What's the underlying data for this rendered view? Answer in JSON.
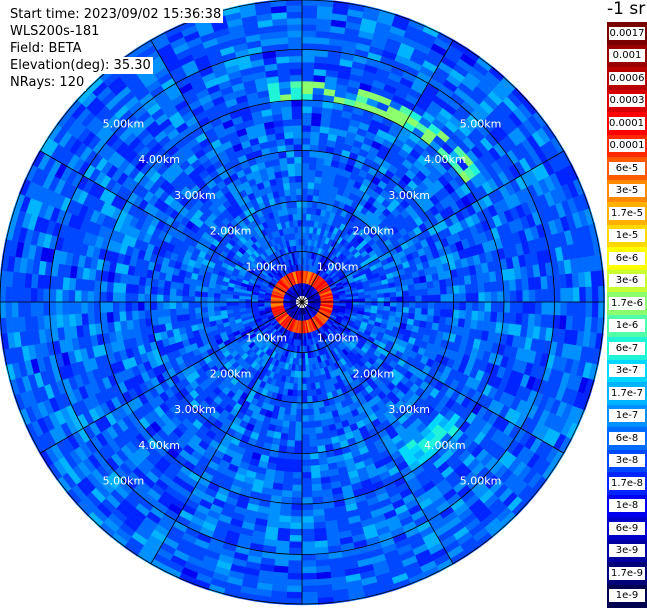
{
  "header": {
    "start_time": "Start time: 2023/09/02 15:36:38",
    "instrument": "WLS200s-181",
    "field": "Field: BETA",
    "elevation": "Elevation(deg): 35.30",
    "nrays": "NRays: 120"
  },
  "colorbar": {
    "unit_label": "-1 sr",
    "levels": [
      "0.0017",
      "0.001",
      "0.0006",
      "0.0003",
      "0.00017",
      "0.0001",
      "6e-5",
      "3e-5",
      "1.7e-5",
      "1e-5",
      "6e-6",
      "3e-6",
      "1.7e-6",
      "1e-6",
      "6e-7",
      "3e-7",
      "1.7e-7",
      "1e-7",
      "6e-8",
      "3e-8",
      "1.7e-8",
      "1e-8",
      "6e-9",
      "3e-9",
      "1.7e-9",
      "1e-9"
    ],
    "colors": [
      "#7a0000",
      "#990000",
      "#b80000",
      "#d80000",
      "#ff0000",
      "#ff2a00",
      "#ff5a00",
      "#ff8800",
      "#ffb000",
      "#ffd800",
      "#ffff00",
      "#c8ff30",
      "#8cff6c",
      "#50ffa8",
      "#20f4d8",
      "#00d8ff",
      "#00b4ff",
      "#0090ff",
      "#006cff",
      "#0048ff",
      "#0024ff",
      "#0000f0",
      "#0000c8",
      "#0000a0",
      "#000078",
      "#000050"
    ]
  },
  "chart_data": {
    "type": "polar PPI (plan position indicator) scan",
    "field": "BETA",
    "elevation_deg": 35.3,
    "n_rays": 120,
    "radial_axis": {
      "ring_labels": [
        "1.00km",
        "2.00km",
        "3.00km",
        "4.00km",
        "5.00km"
      ],
      "ring_values_km": [
        1,
        2,
        3,
        4,
        5
      ],
      "max_range_km": 6.0
    },
    "azimuth_spokes_deg": [
      0,
      30,
      60,
      90,
      120,
      150,
      180,
      210,
      240,
      270,
      300,
      330
    ],
    "color_scale": "log",
    "features": [
      {
        "name": "near-range ring",
        "range_km": [
          0.45,
          0.6
        ],
        "beta": 0.0003
      },
      {
        "name": "northeast arc",
        "range_km": [
          4.1,
          4.3
        ],
        "azimuth_deg": [
          -10,
          55
        ],
        "beta": 3e-06
      },
      {
        "name": "southeast arc",
        "range_km": [
          3.6,
          3.9
        ],
        "azimuth_deg": [
          125,
          148
        ],
        "beta": 1e-06
      },
      {
        "name": "north plume",
        "range_km": [
          0.6,
          2.7
        ],
        "azimuth_deg": [
          -5,
          25
        ],
        "beta": 1e-07
      }
    ]
  }
}
